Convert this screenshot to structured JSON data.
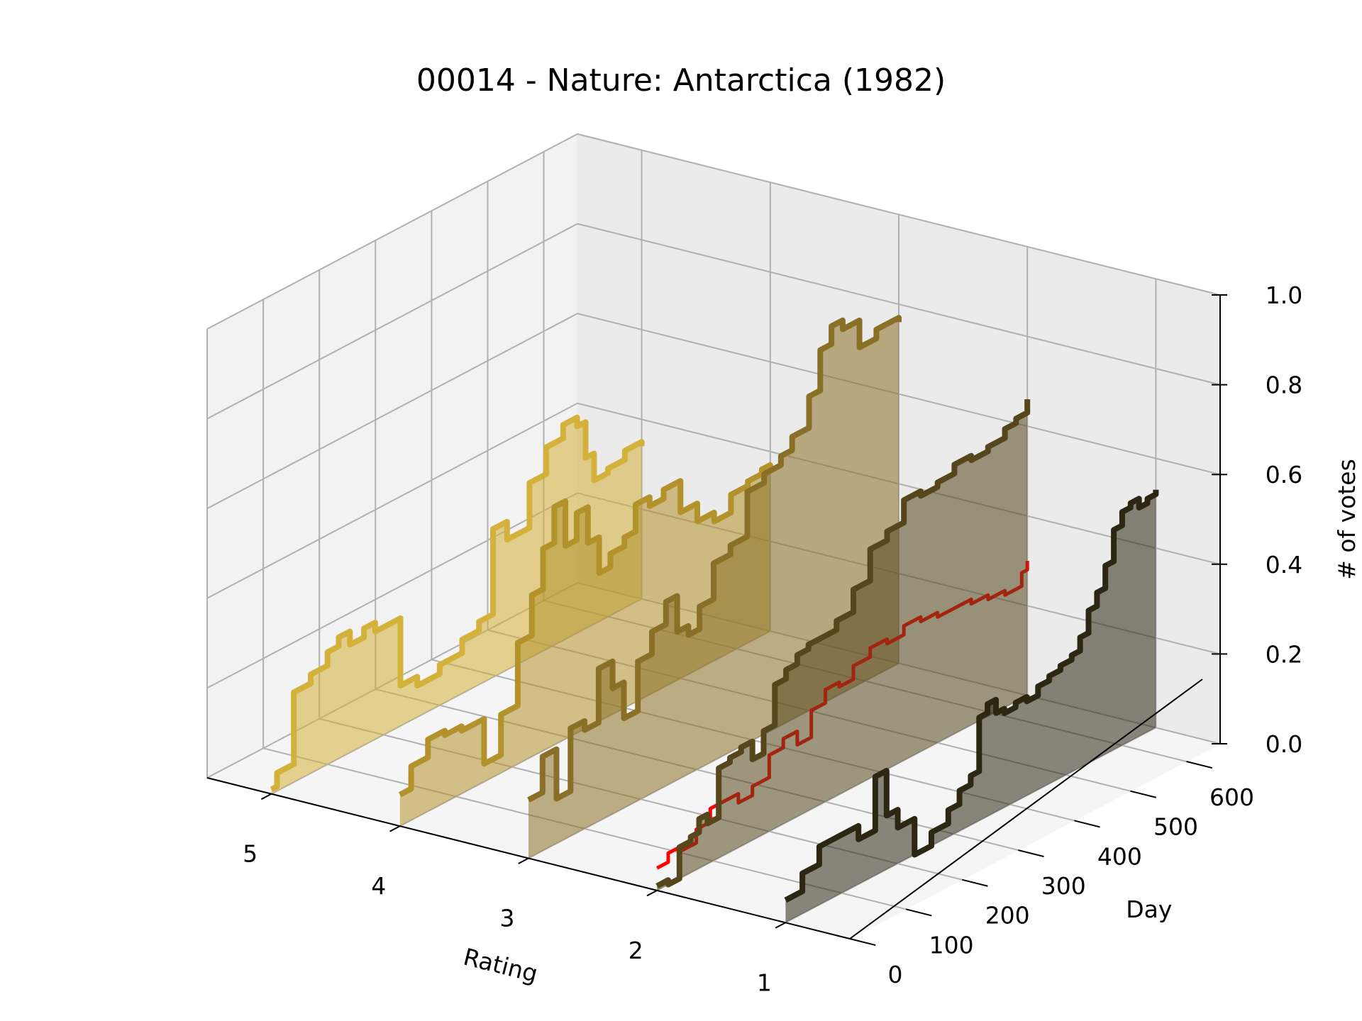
{
  "chart_data": {
    "type": "line",
    "title": "00014 - Nature: Antarctica (1982)",
    "xlabel": "Rating",
    "ylabel": "Day",
    "zlabel": "# of votes",
    "rating_ticks": [
      "5",
      "4",
      "3",
      "2",
      "1"
    ],
    "day_ticks": [
      "0",
      "100",
      "200",
      "300",
      "400",
      "500",
      "600"
    ],
    "vote_ticks": [
      "0.0",
      "0.2",
      "0.4",
      "0.6",
      "0.8",
      "1.0"
    ],
    "xlim": [
      0.5,
      5.5
    ],
    "ylim": [
      0,
      660
    ],
    "zlim": [
      0,
      1.0
    ],
    "grid": true,
    "series": [
      {
        "rating": 5,
        "color": "#d4b13a",
        "points": [
          [
            0,
            0.01
          ],
          [
            10,
            0.04
          ],
          [
            40,
            0.2
          ],
          [
            70,
            0.22
          ],
          [
            100,
            0.25
          ],
          [
            120,
            0.27
          ],
          [
            140,
            0.24
          ],
          [
            165,
            0.26
          ],
          [
            185,
            0.24
          ],
          [
            205,
            0.24
          ],
          [
            230,
            0.09
          ],
          [
            260,
            0.07
          ],
          [
            300,
            0.09
          ],
          [
            340,
            0.12
          ],
          [
            370,
            0.14
          ],
          [
            395,
            0.33
          ],
          [
            420,
            0.29
          ],
          [
            460,
            0.39
          ],
          [
            490,
            0.45
          ],
          [
            520,
            0.48
          ],
          [
            545,
            0.46
          ],
          [
            560,
            0.38
          ],
          [
            575,
            0.32
          ],
          [
            600,
            0.33
          ],
          [
            630,
            0.35
          ],
          [
            660,
            0.34
          ]
        ]
      },
      {
        "rating": 4,
        "color": "#b3922c",
        "points": [
          [
            0,
            0.07
          ],
          [
            20,
            0.12
          ],
          [
            50,
            0.16
          ],
          [
            80,
            0.15
          ],
          [
            110,
            0.14
          ],
          [
            150,
            0.04
          ],
          [
            180,
            0.13
          ],
          [
            210,
            0.27
          ],
          [
            235,
            0.36
          ],
          [
            255,
            0.45
          ],
          [
            275,
            0.53
          ],
          [
            295,
            0.43
          ],
          [
            315,
            0.49
          ],
          [
            335,
            0.41
          ],
          [
            355,
            0.33
          ],
          [
            375,
            0.36
          ],
          [
            400,
            0.38
          ],
          [
            420,
            0.44
          ],
          [
            445,
            0.42
          ],
          [
            470,
            0.44
          ],
          [
            500,
            0.37
          ],
          [
            530,
            0.33
          ],
          [
            560,
            0.31
          ],
          [
            590,
            0.35
          ],
          [
            620,
            0.36
          ],
          [
            645,
            0.37
          ],
          [
            660,
            0.36
          ]
        ]
      },
      {
        "rating": 3,
        "color": "#8a7026",
        "points": [
          [
            0,
            0.13
          ],
          [
            25,
            0.21
          ],
          [
            50,
            0.1
          ],
          [
            75,
            0.24
          ],
          [
            100,
            0.22
          ],
          [
            125,
            0.34
          ],
          [
            150,
            0.28
          ],
          [
            170,
            0.2
          ],
          [
            195,
            0.31
          ],
          [
            220,
            0.36
          ],
          [
            245,
            0.41
          ],
          [
            265,
            0.33
          ],
          [
            285,
            0.31
          ],
          [
            305,
            0.36
          ],
          [
            330,
            0.44
          ],
          [
            360,
            0.46
          ],
          [
            390,
            0.56
          ],
          [
            420,
            0.58
          ],
          [
            450,
            0.6
          ],
          [
            470,
            0.63
          ],
          [
            500,
            0.7
          ],
          [
            520,
            0.79
          ],
          [
            540,
            0.83
          ],
          [
            560,
            0.81
          ],
          [
            590,
            0.75
          ],
          [
            620,
            0.77
          ],
          [
            650,
            0.77
          ],
          [
            660,
            0.76
          ]
        ]
      },
      {
        "rating": 2,
        "color": "#ff0000",
        "points": [
          [
            0,
            0.05
          ],
          [
            20,
            0.07
          ],
          [
            45,
            0.06
          ],
          [
            70,
            0.09
          ],
          [
            95,
            0.12
          ],
          [
            120,
            0.12
          ],
          [
            145,
            0.1
          ],
          [
            170,
            0.12
          ],
          [
            200,
            0.17
          ],
          [
            225,
            0.19
          ],
          [
            250,
            0.16
          ],
          [
            275,
            0.22
          ],
          [
            300,
            0.25
          ],
          [
            325,
            0.24
          ],
          [
            350,
            0.27
          ],
          [
            380,
            0.29
          ],
          [
            410,
            0.28
          ],
          [
            440,
            0.3
          ],
          [
            470,
            0.29
          ],
          [
            500,
            0.28
          ],
          [
            530,
            0.28
          ],
          [
            560,
            0.27
          ],
          [
            590,
            0.26
          ],
          [
            620,
            0.25
          ],
          [
            650,
            0.28
          ],
          [
            660,
            0.3
          ]
        ]
      },
      {
        "rating": 2,
        "color": "#55461b",
        "points": [
          [
            0,
            0.01
          ],
          [
            20,
            0.0
          ],
          [
            40,
            0.07
          ],
          [
            60,
            0.08
          ],
          [
            75,
            0.11
          ],
          [
            90,
            0.09
          ],
          [
            110,
            0.2
          ],
          [
            130,
            0.21
          ],
          [
            150,
            0.22
          ],
          [
            170,
            0.18
          ],
          [
            190,
            0.23
          ],
          [
            210,
            0.32
          ],
          [
            230,
            0.34
          ],
          [
            250,
            0.36
          ],
          [
            270,
            0.37
          ],
          [
            290,
            0.37
          ],
          [
            320,
            0.39
          ],
          [
            350,
            0.44
          ],
          [
            380,
            0.51
          ],
          [
            410,
            0.53
          ],
          [
            440,
            0.58
          ],
          [
            470,
            0.57
          ],
          [
            500,
            0.58
          ],
          [
            530,
            0.6
          ],
          [
            560,
            0.59
          ],
          [
            590,
            0.6
          ],
          [
            620,
            0.62
          ],
          [
            640,
            0.63
          ],
          [
            660,
            0.66
          ]
        ]
      },
      {
        "rating": 1,
        "color": "#2d2613",
        "points": [
          [
            0,
            0.05
          ],
          [
            30,
            0.09
          ],
          [
            60,
            0.13
          ],
          [
            100,
            0.13
          ],
          [
            130,
            0.1
          ],
          [
            160,
            0.22
          ],
          [
            180,
            0.12
          ],
          [
            200,
            0.08
          ],
          [
            230,
            0.0
          ],
          [
            260,
            0.03
          ],
          [
            290,
            0.06
          ],
          [
            310,
            0.09
          ],
          [
            330,
            0.11
          ],
          [
            345,
            0.23
          ],
          [
            360,
            0.25
          ],
          [
            375,
            0.22
          ],
          [
            390,
            0.21
          ],
          [
            410,
            0.22
          ],
          [
            430,
            0.21
          ],
          [
            450,
            0.23
          ],
          [
            470,
            0.24
          ],
          [
            490,
            0.25
          ],
          [
            510,
            0.26
          ],
          [
            525,
            0.29
          ],
          [
            540,
            0.34
          ],
          [
            555,
            0.37
          ],
          [
            570,
            0.42
          ],
          [
            585,
            0.49
          ],
          [
            600,
            0.52
          ],
          [
            615,
            0.53
          ],
          [
            630,
            0.51
          ],
          [
            645,
            0.52
          ],
          [
            660,
            0.53
          ]
        ]
      }
    ]
  }
}
